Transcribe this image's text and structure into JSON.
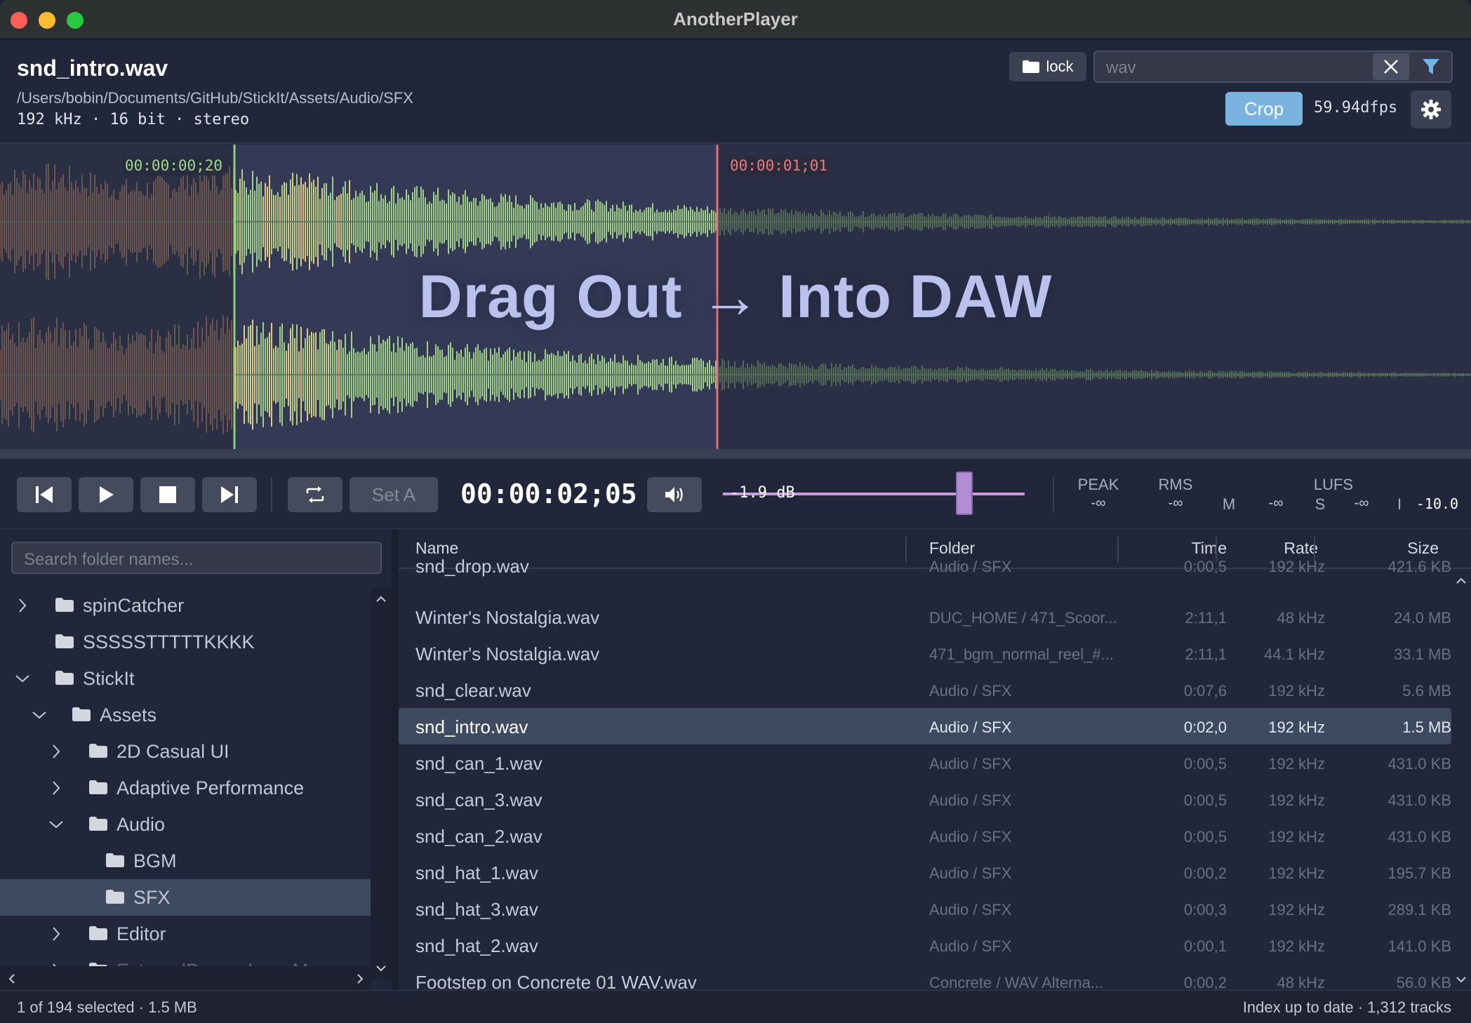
{
  "app": {
    "title": "AnotherPlayer"
  },
  "header": {
    "file_name": "snd_intro.wav",
    "file_path": "/Users/bobin/Documents/GitHub/StickIt/Assets/Audio/SFX",
    "meta": "192 kHz · 16 bit · stereo",
    "lock_label": "lock",
    "search_value": "wav",
    "crop_label": "Crop",
    "fps": "59.94dfps"
  },
  "waveform": {
    "marker_a_time": "00:00:00;20",
    "marker_b_time": "00:00:01;01",
    "overlay_text": "Drag Out → Into DAW",
    "colors": {
      "marker_a": "#8ed081",
      "marker_b": "#e56e6e",
      "wave_active": "#a6d98a",
      "wave_dim": "#5e7a5a"
    }
  },
  "transport": {
    "set_a_label": "Set A",
    "timecode": "00:00:02;05",
    "volume_label": "-1.9 dB",
    "meters": {
      "peak_label": "PEAK",
      "peak_value": "-∞",
      "rms_label": "RMS",
      "rms_value": "-∞",
      "m_label": "M",
      "m_value": "-∞",
      "lufs_label": "LUFS",
      "s_label": "S",
      "s_value": "-∞",
      "i_label": "I",
      "i_value": "-10.0"
    }
  },
  "sidebar": {
    "search_placeholder": "Search folder names...",
    "tree": [
      {
        "label": "spinCatcher",
        "expanded": false
      },
      {
        "label": "SSSSSTTTTTKKKK"
      },
      {
        "label": "StickIt",
        "expanded": true
      },
      {
        "label": "Assets",
        "expanded": true
      },
      {
        "label": "2D Casual UI",
        "expanded": false
      },
      {
        "label": "Adaptive Performance",
        "expanded": false
      },
      {
        "label": "Audio",
        "expanded": true
      },
      {
        "label": "BGM"
      },
      {
        "label": "SFX",
        "selected": true
      },
      {
        "label": "Editor",
        "expanded": false
      },
      {
        "label": "ExternalDependencyManager",
        "expanded": false
      }
    ]
  },
  "table": {
    "headers": {
      "name": "Name",
      "folder": "Folder",
      "time": "Time",
      "rate": "Rate",
      "size": "Size"
    },
    "rows": [
      {
        "name": "snd_drop.wav",
        "folder": "Audio / SFX",
        "time": "0:00,5",
        "rate": "192 kHz",
        "size": "421.6 KB"
      },
      {
        "name": "Winter's Nostalgia.wav",
        "folder": "DUC_HOME / 471_Scoor...",
        "time": "2:11,1",
        "rate": "48 kHz",
        "size": "24.0 MB"
      },
      {
        "name": "Winter's Nostalgia.wav",
        "folder": "471_bgm_normal_reel_#...",
        "time": "2:11,1",
        "rate": "44.1 kHz",
        "size": "33.1 MB"
      },
      {
        "name": "snd_clear.wav",
        "folder": "Audio / SFX",
        "time": "0:07,6",
        "rate": "192 kHz",
        "size": "5.6 MB"
      },
      {
        "name": "snd_intro.wav",
        "folder": "Audio / SFX",
        "time": "0:02,0",
        "rate": "192 kHz",
        "size": "1.5 MB",
        "selected": true
      },
      {
        "name": "snd_can_1.wav",
        "folder": "Audio / SFX",
        "time": "0:00,5",
        "rate": "192 kHz",
        "size": "431.0 KB"
      },
      {
        "name": "snd_can_3.wav",
        "folder": "Audio / SFX",
        "time": "0:00,5",
        "rate": "192 kHz",
        "size": "431.0 KB"
      },
      {
        "name": "snd_can_2.wav",
        "folder": "Audio / SFX",
        "time": "0:00,5",
        "rate": "192 kHz",
        "size": "431.0 KB"
      },
      {
        "name": "snd_hat_1.wav",
        "folder": "Audio / SFX",
        "time": "0:00,2",
        "rate": "192 kHz",
        "size": "195.7 KB"
      },
      {
        "name": "snd_hat_3.wav",
        "folder": "Audio / SFX",
        "time": "0:00,3",
        "rate": "192 kHz",
        "size": "289.1 KB"
      },
      {
        "name": "snd_hat_2.wav",
        "folder": "Audio / SFX",
        "time": "0:00,1",
        "rate": "192 kHz",
        "size": "141.0 KB"
      },
      {
        "name": "Footstep on Concrete 01 WAV.wav",
        "folder": "Concrete / WAV Alterna...",
        "time": "0:00,2",
        "rate": "48 kHz",
        "size": "56.0 KB"
      }
    ]
  },
  "status": {
    "left": "1 of 194 selected · 1.5 MB",
    "right": "Index up to date · 1,312 tracks"
  }
}
